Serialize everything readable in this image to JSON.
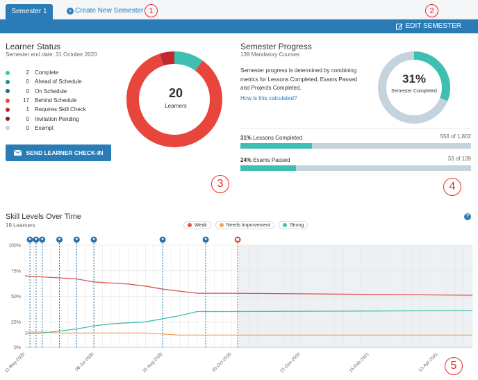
{
  "tabs": {
    "active": "Semester 1",
    "create": "Create New Semester"
  },
  "topbar": {
    "edit_label": "EDIT SEMESTER"
  },
  "learner_status": {
    "title": "Learner Status",
    "subtitle": "Semester end date: 31 October 2020",
    "items": [
      {
        "count": "2",
        "label": "Complete",
        "color": "#3fbfb1"
      },
      {
        "count": "0",
        "label": "Ahead of Schedule",
        "color": "#1f8a8a"
      },
      {
        "count": "0",
        "label": "On Schedule",
        "color": "#1b6f7a"
      },
      {
        "count": "17",
        "label": "Behind Schedule",
        "color": "#e8463c"
      },
      {
        "count": "1",
        "label": "Requires Skill Check",
        "color": "#c0282e"
      },
      {
        "count": "0",
        "label": "Invitation Pending",
        "color": "#8b1d1d"
      },
      {
        "count": "0",
        "label": "Exempt",
        "color": "#c5d3dc"
      }
    ],
    "donut_value": "20",
    "donut_label": "Learners",
    "send_button": "SEND LEARNER CHECK-IN"
  },
  "semester_progress": {
    "title": "Semester Progress",
    "subtitle": "139 Mandatory Courses",
    "description": "Semester progress is determined by combining metrics for Lessons Completed, Exams Passed and Projects Completed.",
    "link": "How is this calculated?",
    "percent": "31%",
    "percent_label": "Semester Completed",
    "percent_value": 0.31,
    "lessons": {
      "pct": "31%",
      "label": " Lessons Completed",
      "count": "556 of 1,802",
      "fraction": 0.31
    },
    "exams": {
      "pct": "24%",
      "label": " Exams Passed",
      "count": "33 of 139",
      "fraction": 0.24
    }
  },
  "annotations": [
    "1",
    "2",
    "3",
    "4",
    "5"
  ],
  "skill_chart": {
    "title": "Skill Levels Over Time",
    "subtitle": "19 Learners",
    "help": "?",
    "legend": [
      {
        "name": "Weak",
        "color": "#d9534f"
      },
      {
        "name": "Needs Improvement",
        "color": "#f0a35e"
      },
      {
        "name": "Strong",
        "color": "#3fbfb1"
      }
    ]
  },
  "chart_data": {
    "type": "line",
    "title": "Skill Levels Over Time",
    "ylim": [
      0,
      100
    ],
    "y_ticks": [
      "100%",
      "75%",
      "50%",
      "25%",
      "0%"
    ],
    "x_ticks": [
      "11-May-2020",
      "06-Jul-2020",
      "31-Aug-2020",
      "26-Oct-2020",
      "21-Dec-2020",
      "15-Feb-2021",
      "12-Apr-2021"
    ],
    "x": [
      "2020-05-11",
      "2020-05-25",
      "2020-06-08",
      "2020-06-22",
      "2020-07-06",
      "2020-07-20",
      "2020-08-03",
      "2020-08-17",
      "2020-08-31",
      "2020-09-14",
      "2020-09-28",
      "2020-10-12",
      "2020-10-26",
      "2021-05-10"
    ],
    "series": [
      {
        "name": "Weak",
        "color": "#d9534f",
        "values": [
          70,
          69,
          68,
          67,
          64,
          63,
          62,
          60,
          57,
          55,
          53,
          53,
          53,
          51
        ]
      },
      {
        "name": "Needs Improvement",
        "color": "#f0a35e",
        "values": [
          15,
          15,
          14,
          14,
          14,
          14,
          14,
          14,
          13,
          12,
          12,
          12,
          12,
          12
        ]
      },
      {
        "name": "Strong",
        "color": "#3fbfb1",
        "values": [
          13,
          14,
          16,
          18,
          21,
          23,
          24,
          25,
          28,
          31,
          35,
          35,
          35,
          36
        ]
      }
    ],
    "events": [
      {
        "date": "2020-05-15",
        "type": "learner-icon"
      },
      {
        "date": "2020-05-20",
        "type": "learner-icon"
      },
      {
        "date": "2020-05-25",
        "type": "learner-icon"
      },
      {
        "date": "2020-06-08",
        "type": "learner-icon"
      },
      {
        "date": "2020-06-22",
        "type": "learner-icon"
      },
      {
        "date": "2020-07-06",
        "type": "learner-icon"
      },
      {
        "date": "2020-08-31",
        "type": "learner-icon"
      },
      {
        "date": "2020-10-05",
        "type": "learner-icon"
      },
      {
        "date": "2020-10-31",
        "type": "end-icon"
      }
    ],
    "grid": true
  }
}
